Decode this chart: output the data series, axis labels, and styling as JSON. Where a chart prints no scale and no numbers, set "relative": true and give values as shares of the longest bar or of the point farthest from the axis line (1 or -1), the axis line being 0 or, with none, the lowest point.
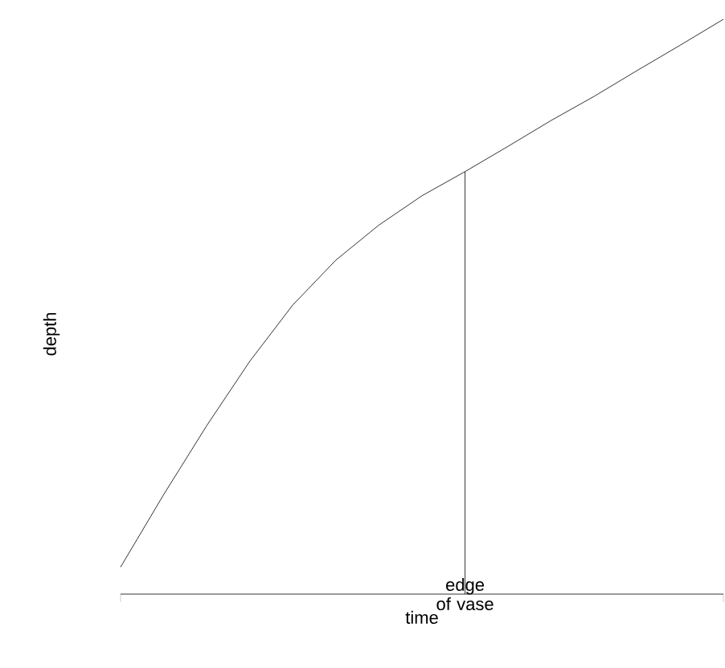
{
  "chart_data": {
    "type": "line",
    "relative": true,
    "xlabel": "time",
    "ylabel": "depth",
    "color": "#000000",
    "categories": [
      null,
      null,
      null,
      null,
      null,
      null,
      null,
      null,
      null,
      null,
      null,
      null,
      null,
      null,
      null
    ],
    "values": [
      0.047,
      0.173,
      0.293,
      0.405,
      0.503,
      0.581,
      0.642,
      0.693,
      0.735,
      0.779,
      0.824,
      0.866,
      0.911,
      0.955,
      1
    ],
    "annotations": [
      "edge of vase"
    ]
  }
}
